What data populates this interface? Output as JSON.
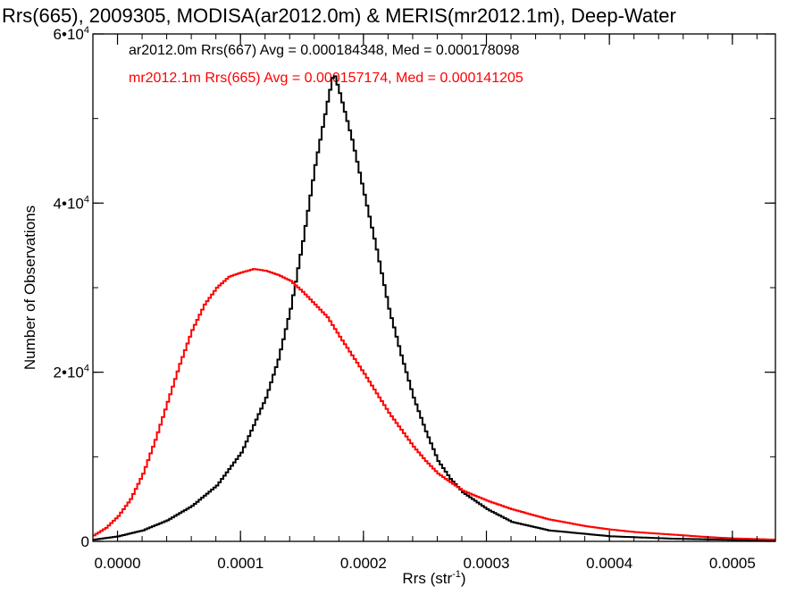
{
  "chart_data": {
    "type": "line",
    "title": "Rrs(665), 2009305, MODISA(ar2012.0m) & MERIS(mr2012.1m), Deep-Water",
    "xlabel": "Rrs (str",
    "xlabel_sup": "-1",
    "xlabel_end": ")",
    "ylabel": "Number of Observations",
    "xlim": [
      -2e-05,
      0.000535
    ],
    "ylim": [
      0,
      60000
    ],
    "x_ticks": [
      {
        "value": 0.0,
        "label": "0.0000"
      },
      {
        "value": 0.0001,
        "label": "0.0001"
      },
      {
        "value": 0.0002,
        "label": "0.0002"
      },
      {
        "value": 0.0003,
        "label": "0.0003"
      },
      {
        "value": 0.0004,
        "label": "0.0004"
      },
      {
        "value": 0.0005,
        "label": "0.0005"
      }
    ],
    "y_ticks": [
      {
        "value": 0,
        "base": "0",
        "exp": ""
      },
      {
        "value": 20000,
        "base": "2•10",
        "exp": "4"
      },
      {
        "value": 40000,
        "base": "4•10",
        "exp": "4"
      },
      {
        "value": 60000,
        "base": "6•10",
        "exp": "4"
      }
    ],
    "x_minor_step": 2e-05,
    "y_minor_step": 10000,
    "legend_placement": "top-left",
    "grid": false,
    "series": [
      {
        "name": "ar2012.0m Rrs(667) Avg = 0.000184348, Med = 0.000178098",
        "color": "#000000",
        "x": [
          -2e-05,
          0.0,
          2e-05,
          4e-05,
          6e-05,
          8e-05,
          0.0001,
          0.00012,
          0.00013,
          0.00014,
          0.00015,
          0.00016,
          0.00017,
          0.000175,
          0.00018,
          0.00019,
          0.0002,
          0.00021,
          0.00022,
          0.00023,
          0.00024,
          0.00025,
          0.00026,
          0.00027,
          0.00028,
          0.0003,
          0.00032,
          0.00035,
          0.0004,
          0.00045,
          0.0005,
          0.000535
        ],
        "y": [
          200,
          600,
          1300,
          2500,
          4200,
          6600,
          10500,
          17000,
          21500,
          27500,
          35500,
          44500,
          52000,
          55500,
          53000,
          47500,
          41000,
          34500,
          27500,
          22000,
          17000,
          13000,
          9500,
          7400,
          5800,
          3800,
          2300,
          1300,
          600,
          320,
          180,
          130
        ]
      },
      {
        "name": "mr2012.1m Rrs(665) Avg = 0.000157174, Med = 0.000141205",
        "color": "#ff0000",
        "x": [
          -2e-05,
          -1e-05,
          0.0,
          1e-05,
          2e-05,
          3e-05,
          4e-05,
          5e-05,
          6e-05,
          7e-05,
          8e-05,
          9e-05,
          0.0001,
          0.00011,
          0.00012,
          0.00013,
          0.00014,
          0.00015,
          0.00016,
          0.00017,
          0.00018,
          0.00019,
          0.0002,
          0.00021,
          0.00022,
          0.00023,
          0.00024,
          0.00025,
          0.00026,
          0.00027,
          0.00028,
          0.0003,
          0.00032,
          0.00035,
          0.00038,
          0.0004,
          0.00042,
          0.00045,
          0.00048,
          0.0005,
          0.000535
        ],
        "y": [
          700,
          1600,
          3000,
          5000,
          8000,
          12000,
          16500,
          21000,
          25000,
          28000,
          30000,
          31300,
          31800,
          32200,
          32000,
          31500,
          30800,
          29500,
          28000,
          26500,
          24200,
          22000,
          19800,
          17500,
          15200,
          13200,
          11200,
          9500,
          8000,
          7000,
          6000,
          4800,
          3800,
          2600,
          1800,
          1400,
          1100,
          800,
          500,
          350,
          200
        ]
      }
    ]
  }
}
